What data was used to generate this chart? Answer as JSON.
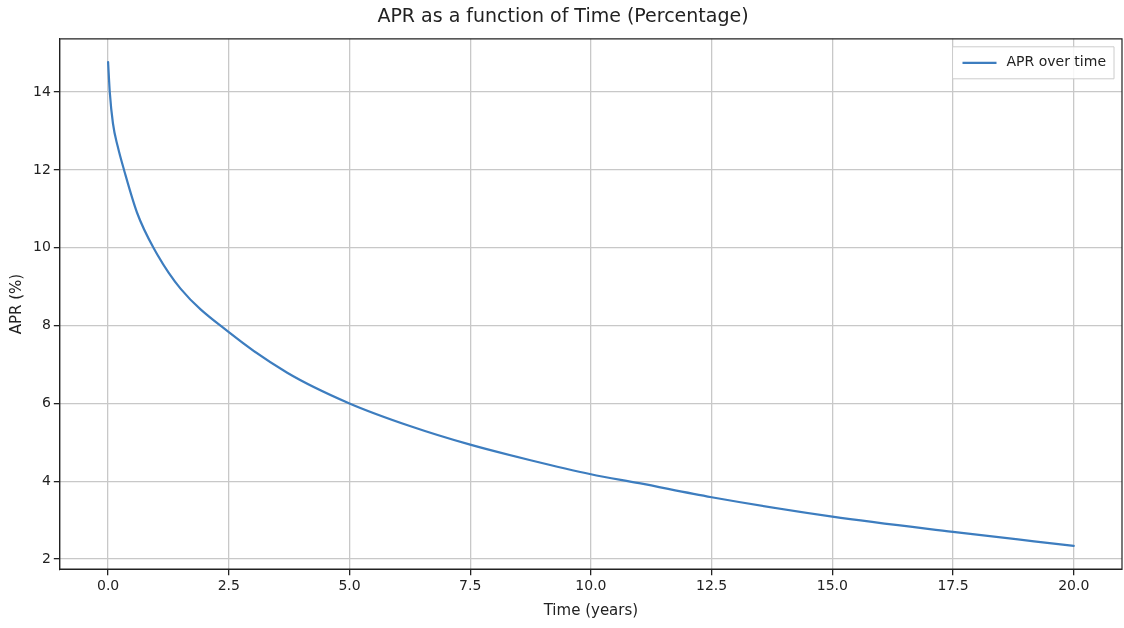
{
  "chart_data": {
    "type": "line",
    "title": "APR as a function of Time (Percentage)",
    "xlabel": "Time (years)",
    "ylabel": "APR (%)",
    "series": [
      {
        "name": "APR over time",
        "color": "#3d7dbf",
        "x": [
          0,
          0.035,
          0.1,
          0.2,
          0.33,
          0.6,
          0.94,
          1.5,
          2.5,
          3.71,
          5,
          6.25,
          7.5,
          8.75,
          10,
          11,
          12.5,
          15,
          17.5,
          20
        ],
        "values": [
          14.77,
          14,
          13.2,
          12.6,
          12,
          10.9,
          10,
          8.95,
          7.83,
          6.79,
          6.0,
          5.42,
          4.94,
          4.54,
          4.18,
          3.95,
          3.59,
          3.09,
          2.7,
          2.34
        ]
      }
    ],
    "xlim": [
      -1,
      21
    ],
    "xticks": [
      {
        "value": 0,
        "label": "0.0"
      },
      {
        "value": 2.5,
        "label": "2.5"
      },
      {
        "value": 5,
        "label": "5.0"
      },
      {
        "value": 7.5,
        "label": "7.5"
      },
      {
        "value": 10,
        "label": "10.0"
      },
      {
        "value": 12.5,
        "label": "12.5"
      },
      {
        "value": 15,
        "label": "15.0"
      },
      {
        "value": 17.5,
        "label": "17.5"
      },
      {
        "value": 20,
        "label": "20.0"
      }
    ],
    "ylim": [
      1.74,
      15.37
    ],
    "yticks": [
      2,
      4,
      6,
      8,
      10,
      12,
      14
    ],
    "grid": true,
    "legend": "top right",
    "marker": "none",
    "line_style": "solid"
  }
}
